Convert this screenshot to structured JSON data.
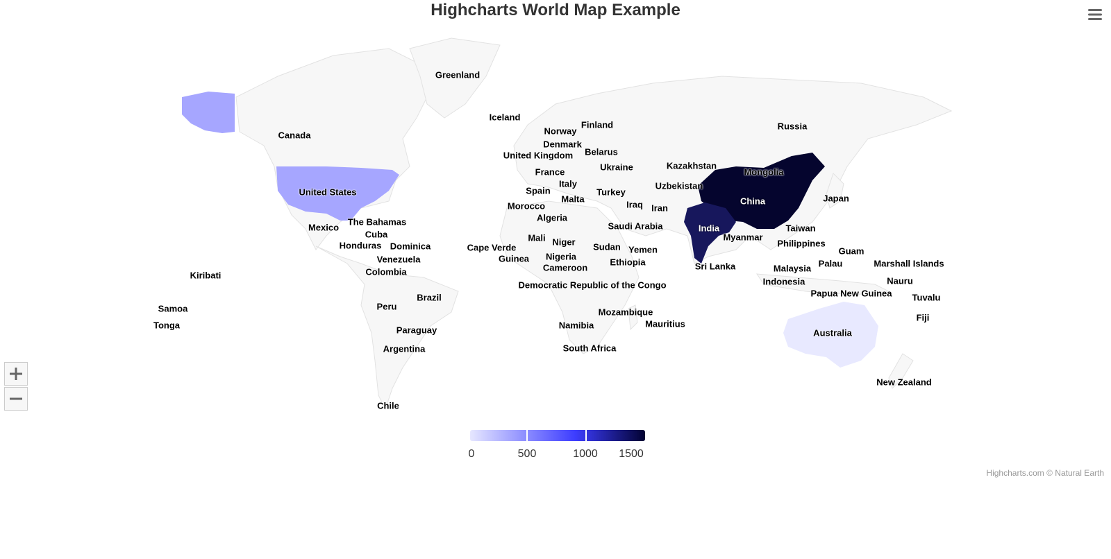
{
  "title": "Highcharts World Map Example",
  "menu_icon": "hamburger-menu-icon",
  "colors": {
    "land": "#f7f7f7",
    "border": "#e2e2e2",
    "color_min": "#e6e7ff",
    "color_mid": "#3d3dff",
    "color_max": "#020232",
    "united_states": "#a6a6ff",
    "australia": "#e8e9ff",
    "china": "#05052e",
    "india": "#17175c"
  },
  "countries": [
    {
      "name": "Greenland"
    },
    {
      "name": "Iceland"
    },
    {
      "name": "Canada"
    },
    {
      "name": "Russia"
    },
    {
      "name": "Finland"
    },
    {
      "name": "Norway"
    },
    {
      "name": "Denmark"
    },
    {
      "name": "United Kingdom"
    },
    {
      "name": "Belarus"
    },
    {
      "name": "Ukraine"
    },
    {
      "name": "Kazakhstan"
    },
    {
      "name": "Mongolia"
    },
    {
      "name": "France"
    },
    {
      "name": "United States"
    },
    {
      "name": "Italy"
    },
    {
      "name": "Spain"
    },
    {
      "name": "Uzbekistan"
    },
    {
      "name": "Turkey"
    },
    {
      "name": "Malta"
    },
    {
      "name": "China"
    },
    {
      "name": "Japan"
    },
    {
      "name": "Morocco"
    },
    {
      "name": "Iraq"
    },
    {
      "name": "Iran"
    },
    {
      "name": "Algeria"
    },
    {
      "name": "The Bahamas"
    },
    {
      "name": "Saudi Arabia"
    },
    {
      "name": "Mexico"
    },
    {
      "name": "Cuba"
    },
    {
      "name": "India"
    },
    {
      "name": "Taiwan"
    },
    {
      "name": "Mali"
    },
    {
      "name": "Myanmar"
    },
    {
      "name": "Niger"
    },
    {
      "name": "Honduras"
    },
    {
      "name": "Dominica"
    },
    {
      "name": "Cape Verde"
    },
    {
      "name": "Sudan"
    },
    {
      "name": "Philippines"
    },
    {
      "name": "Yemen"
    },
    {
      "name": "Guam"
    },
    {
      "name": "Nigeria"
    },
    {
      "name": "Guinea"
    },
    {
      "name": "Venezuela"
    },
    {
      "name": "Ethiopia"
    },
    {
      "name": "Palau"
    },
    {
      "name": "Marshall Islands"
    },
    {
      "name": "Sri Lanka"
    },
    {
      "name": "Cameroon"
    },
    {
      "name": "Malaysia"
    },
    {
      "name": "Kiribati"
    },
    {
      "name": "Colombia"
    },
    {
      "name": "Nauru"
    },
    {
      "name": "Indonesia"
    },
    {
      "name": "Democratic Republic of the Congo"
    },
    {
      "name": "Papua New Guinea"
    },
    {
      "name": "Brazil"
    },
    {
      "name": "Tuvalu"
    },
    {
      "name": "Peru"
    },
    {
      "name": "Samoa"
    },
    {
      "name": "Mozambique"
    },
    {
      "name": "Fiji"
    },
    {
      "name": "Namibia"
    },
    {
      "name": "Mauritius"
    },
    {
      "name": "Tonga"
    },
    {
      "name": "Paraguay"
    },
    {
      "name": "Australia"
    },
    {
      "name": "Argentina"
    },
    {
      "name": "South Africa"
    },
    {
      "name": "New Zealand"
    },
    {
      "name": "Chile"
    }
  ],
  "zoom": {
    "in_icon": "plus-icon",
    "out_icon": "minus-icon"
  },
  "legend": {
    "ticks": [
      "0",
      "500",
      "1000",
      "1500"
    ],
    "min": 0,
    "max": 1500
  },
  "credits": "Highcharts.com © Natural Earth"
}
